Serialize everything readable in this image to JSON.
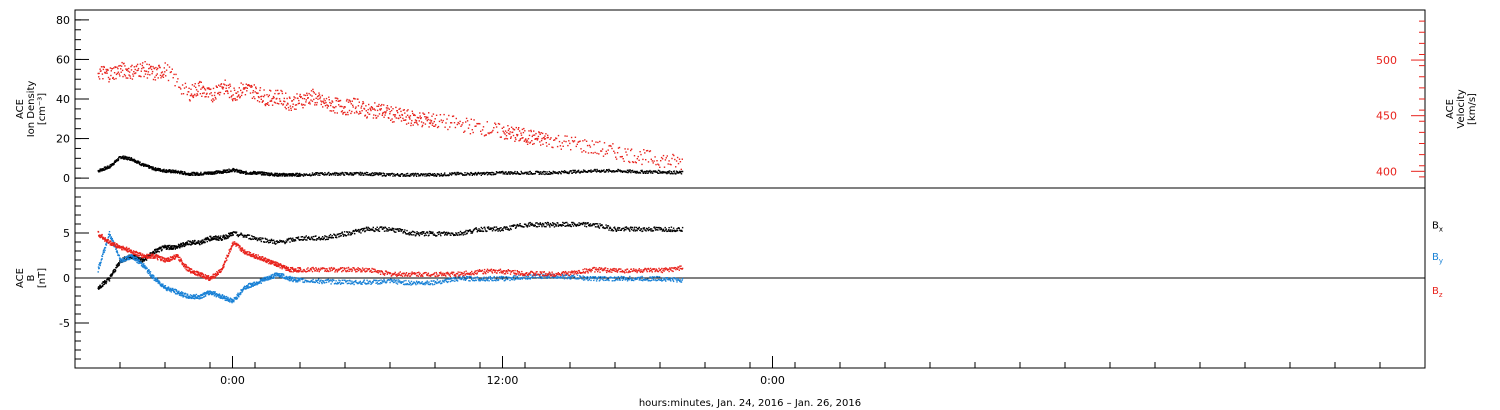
{
  "colors": {
    "black": "#000000",
    "red": "#e8231d",
    "blue": "#1a82d6",
    "frame": "#000000"
  },
  "chart_data": [
    {
      "type": "scatter",
      "panel": "top",
      "left_axis": {
        "label_lines": [
          "ACE",
          "Ion Density",
          "[cm⁻³]"
        ],
        "range": [
          -5,
          85
        ],
        "ticks": [
          0,
          20,
          40,
          60,
          80
        ],
        "tick_labels": [
          "0",
          "20",
          "40",
          "60",
          "80"
        ]
      },
      "right_axis": {
        "label_lines": [
          "ACE",
          "Velocity",
          "[km/s]"
        ],
        "range": [
          385,
          545
        ],
        "ticks": [
          400,
          450,
          500
        ],
        "tick_labels": [
          "400",
          "450",
          "500"
        ],
        "color": "#e8231d"
      },
      "series": [
        {
          "axis": "left",
          "color": "#000000",
          "points": [
            [
              -6.0,
              4
            ],
            [
              -5.5,
              6
            ],
            [
              -5.0,
              11
            ],
            [
              -4.5,
              10
            ],
            [
              -4.0,
              7
            ],
            [
              -3.5,
              5
            ],
            [
              -3.0,
              4
            ],
            [
              -2.5,
              3.5
            ],
            [
              -2.0,
              2.5
            ],
            [
              -1.5,
              2.5
            ],
            [
              -1.0,
              3
            ],
            [
              -0.5,
              3.5
            ],
            [
              0.0,
              4.5
            ],
            [
              0.5,
              3
            ],
            [
              1.0,
              3
            ],
            [
              1.5,
              2.5
            ],
            [
              2.0,
              2
            ],
            [
              2.5,
              2
            ],
            [
              3.0,
              2
            ],
            [
              4.0,
              2.5
            ],
            [
              5.0,
              2.5
            ],
            [
              6.0,
              2.5
            ],
            [
              7.0,
              2
            ],
            [
              8.0,
              2
            ],
            [
              9.0,
              2
            ],
            [
              10.0,
              2.5
            ],
            [
              11.0,
              2.5
            ],
            [
              12.0,
              3
            ],
            [
              13.0,
              3
            ],
            [
              14.0,
              3
            ],
            [
              15.0,
              3.5
            ],
            [
              16.0,
              4
            ],
            [
              17.0,
              4
            ],
            [
              18.0,
              3.5
            ],
            [
              19.0,
              3.5
            ],
            [
              20.0,
              3
            ]
          ]
        },
        {
          "axis": "right",
          "color": "#e8231d",
          "points": [
            [
              -6.0,
              490
            ],
            [
              -5.5,
              488
            ],
            [
              -5.0,
              492
            ],
            [
              -4.5,
              490
            ],
            [
              -4.0,
              493
            ],
            [
              -3.5,
              488
            ],
            [
              -3.0,
              492
            ],
            [
              -2.0,
              470
            ],
            [
              -1.5,
              476
            ],
            [
              -1.0,
              468
            ],
            [
              -0.5,
              478
            ],
            [
              0.0,
              470
            ],
            [
              0.5,
              475
            ],
            [
              1.0,
              472
            ],
            [
              1.5,
              466
            ],
            [
              2.0,
              468
            ],
            [
              2.5,
              462
            ],
            [
              3.0,
              464
            ],
            [
              3.5,
              468
            ],
            [
              4.0,
              462
            ],
            [
              4.5,
              460
            ],
            [
              5.0,
              458
            ],
            [
              5.5,
              460
            ],
            [
              6.0,
              454
            ],
            [
              6.5,
              456
            ],
            [
              7.0,
              452
            ],
            [
              7.5,
              450
            ],
            [
              8.0,
              448
            ],
            [
              8.5,
              447
            ],
            [
              9.0,
              446
            ],
            [
              10.0,
              443
            ],
            [
              11.0,
              440
            ],
            [
              12.0,
              436
            ],
            [
              12.5,
              434
            ],
            [
              13.0,
              432
            ],
            [
              13.5,
              430
            ],
            [
              14.0,
              429
            ],
            [
              15.0,
              426
            ],
            [
              16.0,
              422
            ],
            [
              17.0,
              418
            ],
            [
              18.0,
              414
            ],
            [
              19.0,
              411
            ],
            [
              20.0,
              408
            ]
          ]
        }
      ]
    },
    {
      "type": "scatter",
      "panel": "bottom",
      "left_axis": {
        "label_lines": [
          "ACE",
          "B",
          "[nT]"
        ],
        "range": [
          -10,
          10
        ],
        "ticks": [
          -5,
          0,
          5
        ],
        "tick_labels": [
          "-5",
          "0",
          "5"
        ],
        "zero_line": true
      },
      "x_axis": {
        "range": [
          -7.0,
          53.0
        ],
        "ticks": [
          0,
          12,
          24
        ],
        "tick_labels": [
          "0:00",
          "12:00",
          "0:00"
        ],
        "title": "hours:minutes, Jan. 24, 2016 – Jan. 26, 2016"
      },
      "legend": [
        {
          "base": "B",
          "sub": "x",
          "color": "#000000"
        },
        {
          "base": "B",
          "sub": "y",
          "color": "#1a82d6"
        },
        {
          "base": "B",
          "sub": "z",
          "color": "#e8231d"
        }
      ],
      "series": [
        {
          "color": "#000000",
          "points": [
            [
              -6.0,
              -1
            ],
            [
              -5.5,
              0
            ],
            [
              -5.0,
              2
            ],
            [
              -4.5,
              2.5
            ],
            [
              -4.0,
              2
            ],
            [
              -3.5,
              3
            ],
            [
              -3.0,
              3.5
            ],
            [
              -2.5,
              3.5
            ],
            [
              -2.0,
              4
            ],
            [
              -1.5,
              4
            ],
            [
              -1.0,
              4.5
            ],
            [
              -0.5,
              4.5
            ],
            [
              0.0,
              5
            ],
            [
              1.0,
              4.5
            ],
            [
              2.0,
              4
            ],
            [
              3.0,
              4.5
            ],
            [
              4.0,
              4.5
            ],
            [
              5.0,
              5
            ],
            [
              6.0,
              5.5
            ],
            [
              7.0,
              5.5
            ],
            [
              8.0,
              5
            ],
            [
              9.0,
              5
            ],
            [
              10.0,
              5
            ],
            [
              11.0,
              5.5
            ],
            [
              12.0,
              5.5
            ],
            [
              13.0,
              6
            ],
            [
              14.0,
              6
            ],
            [
              15.0,
              6
            ],
            [
              16.0,
              6
            ],
            [
              17.0,
              5.5
            ],
            [
              18.0,
              5.5
            ],
            [
              19.0,
              5.5
            ],
            [
              20.0,
              5.5
            ]
          ]
        },
        {
          "color": "#1a82d6",
          "points": [
            [
              -6.0,
              1
            ],
            [
              -5.5,
              5
            ],
            [
              -5.0,
              2
            ],
            [
              -4.5,
              2.5
            ],
            [
              -4.0,
              1.5
            ],
            [
              -3.5,
              0
            ],
            [
              -3.0,
              -1
            ],
            [
              -2.5,
              -1.5
            ],
            [
              -2.0,
              -2
            ],
            [
              -1.5,
              -2
            ],
            [
              -1.0,
              -1.5
            ],
            [
              -0.5,
              -2
            ],
            [
              0.0,
              -2.5
            ],
            [
              0.5,
              -1
            ],
            [
              1.0,
              -0.5
            ],
            [
              1.5,
              0
            ],
            [
              2.0,
              0.5
            ],
            [
              2.5,
              0
            ],
            [
              3.0,
              -0.2
            ],
            [
              4.0,
              -0.3
            ],
            [
              5.0,
              -0.4
            ],
            [
              6.0,
              -0.4
            ],
            [
              7.0,
              -0.3
            ],
            [
              8.0,
              -0.5
            ],
            [
              9.0,
              -0.4
            ],
            [
              10.0,
              0
            ],
            [
              11.0,
              0
            ],
            [
              12.0,
              0
            ],
            [
              13.0,
              0.2
            ],
            [
              14.0,
              0.3
            ],
            [
              15.0,
              0.2
            ],
            [
              16.0,
              0
            ],
            [
              17.0,
              0
            ],
            [
              18.0,
              0
            ],
            [
              19.0,
              0
            ],
            [
              20.0,
              -0.2
            ]
          ]
        },
        {
          "color": "#e8231d",
          "points": [
            [
              -6.0,
              5
            ],
            [
              -5.5,
              4
            ],
            [
              -5.0,
              3.5
            ],
            [
              -4.5,
              3
            ],
            [
              -4.0,
              2.5
            ],
            [
              -3.5,
              2.5
            ],
            [
              -3.0,
              2
            ],
            [
              -2.5,
              2.5
            ],
            [
              -2.0,
              1
            ],
            [
              -1.5,
              0.5
            ],
            [
              -1.0,
              0
            ],
            [
              -0.5,
              1
            ],
            [
              0.0,
              4
            ],
            [
              0.5,
              3
            ],
            [
              1.0,
              2.5
            ],
            [
              1.5,
              2
            ],
            [
              2.0,
              1.5
            ],
            [
              2.5,
              1
            ],
            [
              3.0,
              1
            ],
            [
              4.0,
              1
            ],
            [
              5.0,
              1
            ],
            [
              6.0,
              1
            ],
            [
              7.0,
              0.5
            ],
            [
              8.0,
              0.5
            ],
            [
              9.0,
              0.5
            ],
            [
              10.0,
              0.5
            ],
            [
              11.0,
              0.8
            ],
            [
              12.0,
              0.8
            ],
            [
              13.0,
              0.6
            ],
            [
              14.0,
              0.5
            ],
            [
              15.0,
              0.6
            ],
            [
              16.0,
              1
            ],
            [
              17.0,
              0.9
            ],
            [
              18.0,
              0.9
            ],
            [
              19.0,
              0.9
            ],
            [
              20.0,
              1.2
            ]
          ]
        }
      ]
    }
  ]
}
